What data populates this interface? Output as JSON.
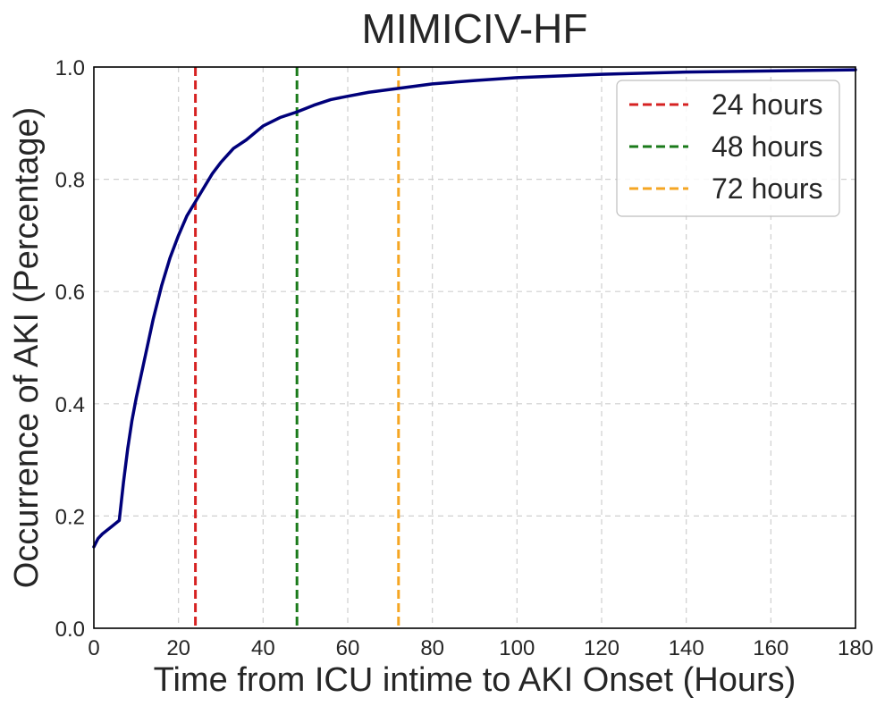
{
  "chart_data": {
    "type": "line",
    "title": "MIMICIV-HF",
    "xlabel": "Time from ICU intime to AKI Onset (Hours)",
    "ylabel": "Occurrence of AKI (Percentage)",
    "xlim": [
      0,
      180
    ],
    "ylim": [
      0,
      1.0
    ],
    "x_ticks": [
      0,
      20,
      40,
      60,
      80,
      100,
      120,
      140,
      160,
      180
    ],
    "y_ticks": [
      0.0,
      0.2,
      0.4,
      0.6,
      0.8,
      1.0
    ],
    "x_tick_labels": [
      "0",
      "20",
      "40",
      "60",
      "80",
      "100",
      "120",
      "140",
      "160",
      "180"
    ],
    "y_tick_labels": [
      "0.0",
      "0.2",
      "0.4",
      "0.6",
      "0.8",
      "1.0"
    ],
    "grid": true,
    "legend_position": "top-right",
    "series": [
      {
        "color": "#00007a",
        "x": [
          0,
          1,
          2,
          4,
          6,
          7,
          8,
          9,
          10,
          12,
          14,
          16,
          18,
          20,
          22,
          24,
          26,
          28,
          30,
          33,
          36,
          40,
          44,
          48,
          52,
          56,
          60,
          65,
          70,
          72,
          80,
          90,
          100,
          110,
          120,
          130,
          140,
          150,
          160,
          170,
          180
        ],
        "y": [
          0.145,
          0.16,
          0.168,
          0.18,
          0.192,
          0.26,
          0.32,
          0.37,
          0.41,
          0.48,
          0.55,
          0.61,
          0.66,
          0.7,
          0.735,
          0.76,
          0.785,
          0.81,
          0.83,
          0.855,
          0.87,
          0.895,
          0.91,
          0.92,
          0.932,
          0.942,
          0.948,
          0.955,
          0.96,
          0.962,
          0.97,
          0.976,
          0.981,
          0.984,
          0.987,
          0.989,
          0.991,
          0.992,
          0.993,
          0.994,
          0.995
        ]
      }
    ],
    "reference_lines": [
      {
        "name": "24 hours",
        "x": 24,
        "color": "#d62222"
      },
      {
        "name": "48 hours",
        "x": 48,
        "color": "#1a7a1a"
      },
      {
        "name": "72 hours",
        "x": 72,
        "color": "#f5a623"
      }
    ]
  }
}
